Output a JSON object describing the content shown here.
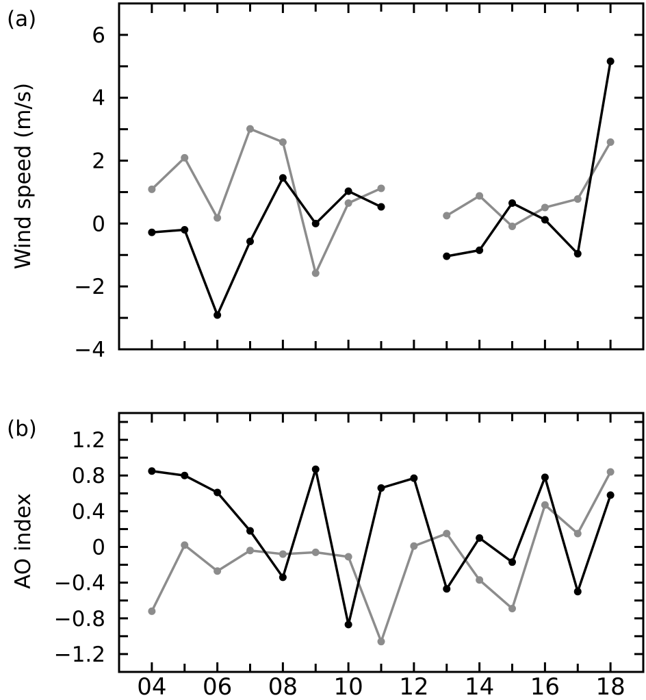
{
  "chart_data": [
    {
      "type": "line",
      "panel_label": "(a)",
      "ylabel": "Wind speed (m/s)",
      "xlabel": "",
      "ylim": [
        -4,
        7
      ],
      "xlim": [
        3,
        19
      ],
      "yticks": [
        -4,
        -2,
        0,
        2,
        4,
        6
      ],
      "ytick_labels": [
        "−4",
        "−2",
        "0",
        "2",
        "4",
        "6"
      ],
      "x": [
        4,
        5,
        6,
        7,
        8,
        9,
        10,
        11,
        12,
        13,
        14,
        15,
        16,
        17,
        18
      ],
      "series": [
        {
          "name": "black",
          "color": "#000000",
          "values": [
            -0.28,
            -0.2,
            -2.91,
            -0.57,
            1.45,
            0.0,
            1.03,
            0.53,
            null,
            -1.04,
            -0.85,
            0.65,
            0.12,
            -0.96,
            5.16
          ]
        },
        {
          "name": "gray",
          "color": "#8c8c8c",
          "values": [
            1.09,
            2.09,
            0.18,
            3.01,
            2.59,
            -1.58,
            0.65,
            1.12,
            null,
            0.25,
            0.88,
            -0.09,
            0.51,
            0.78,
            2.59
          ]
        }
      ]
    },
    {
      "type": "line",
      "panel_label": "(b)",
      "ylabel": "AO index",
      "xlabel": "",
      "ylim": [
        -1.4,
        1.5
      ],
      "xlim": [
        3,
        19
      ],
      "yticks": [
        -1.2,
        -0.8,
        -0.4,
        0,
        0.4,
        0.8,
        1.2
      ],
      "ytick_labels": [
        "−1.2",
        "−0.8",
        "−0.4",
        "0",
        "0.4",
        "0.8",
        "1.2"
      ],
      "xticks": [
        4,
        6,
        8,
        10,
        12,
        14,
        16,
        18
      ],
      "xtick_labels": [
        "04",
        "06",
        "08",
        "10",
        "12",
        "14",
        "16",
        "18"
      ],
      "x": [
        4,
        5,
        6,
        7,
        8,
        9,
        10,
        11,
        12,
        13,
        14,
        15,
        16,
        17,
        18
      ],
      "series": [
        {
          "name": "black",
          "color": "#000000",
          "values": [
            0.85,
            0.8,
            0.61,
            0.18,
            -0.34,
            0.87,
            -0.87,
            0.66,
            0.77,
            -0.47,
            0.1,
            -0.17,
            0.78,
            -0.5,
            0.58
          ]
        },
        {
          "name": "gray",
          "color": "#8c8c8c",
          "values": [
            -0.72,
            0.02,
            -0.27,
            -0.04,
            -0.08,
            -0.06,
            -0.11,
            -1.06,
            0.01,
            0.15,
            -0.37,
            -0.69,
            0.47,
            0.15,
            0.84
          ]
        }
      ]
    }
  ]
}
